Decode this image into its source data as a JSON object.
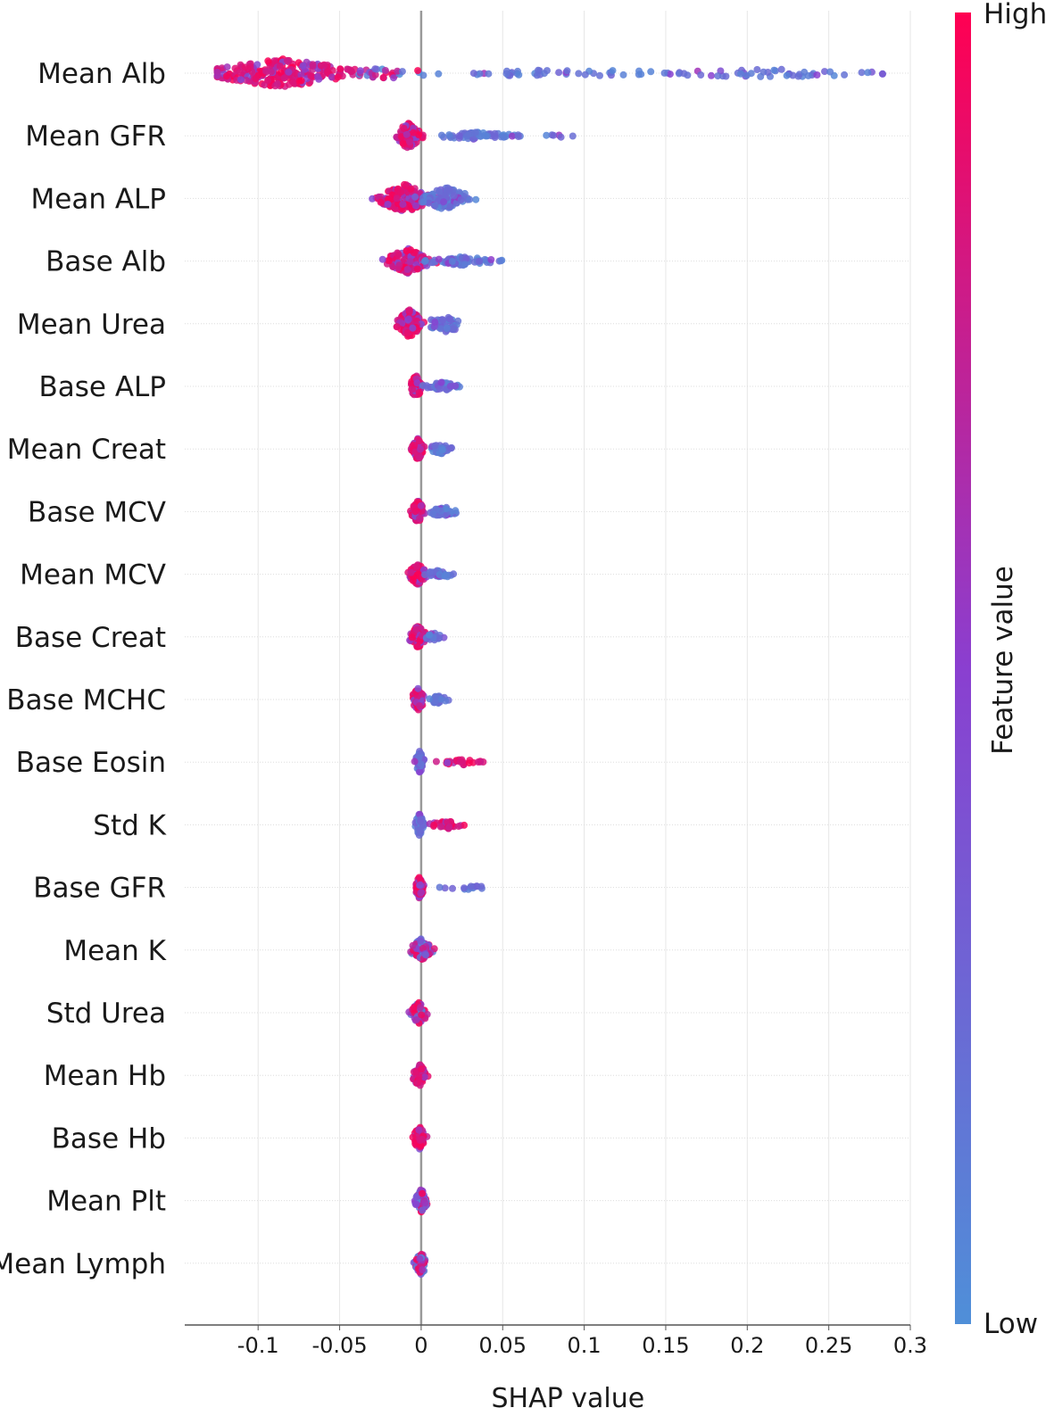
{
  "chart_data": {
    "type": "beeswarm",
    "title": "",
    "xlabel": "SHAP value",
    "xlim": [
      -0.145,
      0.3
    ],
    "xticks": [
      -0.1,
      -0.05,
      0,
      0.05,
      0.1,
      0.15,
      0.2,
      0.25,
      0.3
    ],
    "xtick_labels": [
      "-0.1",
      "-0.05",
      "0",
      "0.05",
      "0.1",
      "0.15",
      "0.2",
      "0.25",
      "0.3"
    ],
    "colorbar": {
      "label": "Feature value",
      "high_label": "High",
      "low_label": "Low",
      "high_color": "#ff0052",
      "mid_color": "#8a3fd0",
      "low_color": "#4f8fd8"
    },
    "features": [
      {
        "name": "Mean Alb",
        "min": -0.125,
        "max": 0.283,
        "high_side": "negative",
        "clusters": [
          {
            "x": -0.085,
            "spread": 0.035,
            "n": 230,
            "h": "high",
            "w": 1.0
          },
          {
            "x": -0.02,
            "spread": 0.02,
            "n": 30,
            "h": "mixed",
            "w": 0.4
          },
          {
            "x": 0.09,
            "spread": 0.06,
            "n": 45,
            "h": "low",
            "w": 0.25
          },
          {
            "x": 0.21,
            "spread": 0.06,
            "n": 45,
            "h": "low",
            "w": 0.3
          }
        ]
      },
      {
        "name": "Mean GFR",
        "min": -0.016,
        "max": 0.093,
        "high_side": "negative",
        "clusters": [
          {
            "x": -0.008,
            "spread": 0.006,
            "n": 90,
            "h": "high",
            "w": 0.9
          },
          {
            "x": 0.035,
            "spread": 0.02,
            "n": 60,
            "h": "low",
            "w": 0.25
          },
          {
            "x": 0.085,
            "spread": 0.008,
            "n": 6,
            "h": "low",
            "w": 0.1
          }
        ]
      },
      {
        "name": "Mean ALP",
        "min": -0.03,
        "max": 0.042,
        "high_side": "negative",
        "clusters": [
          {
            "x": -0.01,
            "spread": 0.013,
            "n": 160,
            "h": "high",
            "w": 1.0
          },
          {
            "x": 0.015,
            "spread": 0.012,
            "n": 90,
            "h": "low",
            "w": 0.8
          }
        ]
      },
      {
        "name": "Base Alb",
        "min": -0.03,
        "max": 0.054,
        "high_side": "negative",
        "clusters": [
          {
            "x": -0.008,
            "spread": 0.01,
            "n": 110,
            "h": "high",
            "w": 0.9
          },
          {
            "x": 0.025,
            "spread": 0.018,
            "n": 70,
            "h": "low",
            "w": 0.3
          }
        ]
      },
      {
        "name": "Mean Urea",
        "min": -0.017,
        "max": 0.036,
        "high_side": "negative",
        "clusters": [
          {
            "x": -0.007,
            "spread": 0.006,
            "n": 110,
            "h": "high",
            "w": 1.0
          },
          {
            "x": 0.015,
            "spread": 0.01,
            "n": 50,
            "h": "low",
            "w": 0.6
          }
        ]
      },
      {
        "name": "Base ALP",
        "min": -0.008,
        "max": 0.029,
        "high_side": "negative",
        "clusters": [
          {
            "x": -0.003,
            "spread": 0.003,
            "n": 70,
            "h": "high",
            "w": 0.8
          },
          {
            "x": 0.013,
            "spread": 0.008,
            "n": 40,
            "h": "low",
            "w": 0.3
          }
        ]
      },
      {
        "name": "Mean Creat",
        "min": -0.007,
        "max": 0.024,
        "high_side": "negative",
        "clusters": [
          {
            "x": -0.002,
            "spread": 0.003,
            "n": 70,
            "h": "high",
            "w": 0.8
          },
          {
            "x": 0.012,
            "spread": 0.006,
            "n": 35,
            "h": "low",
            "w": 0.35
          }
        ]
      },
      {
        "name": "Base MCV",
        "min": -0.008,
        "max": 0.029,
        "high_side": "negative",
        "clusters": [
          {
            "x": -0.002,
            "spread": 0.003,
            "n": 70,
            "h": "high",
            "w": 0.8
          },
          {
            "x": 0.013,
            "spread": 0.008,
            "n": 40,
            "h": "low",
            "w": 0.35
          }
        ]
      },
      {
        "name": "Mean MCV",
        "min": -0.012,
        "max": 0.022,
        "high_side": "negative",
        "clusters": [
          {
            "x": -0.002,
            "spread": 0.004,
            "n": 70,
            "h": "high",
            "w": 0.8
          },
          {
            "x": 0.011,
            "spread": 0.006,
            "n": 35,
            "h": "low",
            "w": 0.35
          }
        ]
      },
      {
        "name": "Base Creat",
        "min": -0.008,
        "max": 0.016,
        "high_side": "negative",
        "clusters": [
          {
            "x": -0.002,
            "spread": 0.004,
            "n": 70,
            "h": "high",
            "w": 0.8
          },
          {
            "x": 0.008,
            "spread": 0.005,
            "n": 20,
            "h": "low",
            "w": 0.3
          }
        ]
      },
      {
        "name": "Base MCHC",
        "min": -0.005,
        "max": 0.017,
        "high_side": "negative",
        "clusters": [
          {
            "x": -0.002,
            "spread": 0.003,
            "n": 60,
            "h": "high",
            "w": 0.8
          },
          {
            "x": 0.01,
            "spread": 0.005,
            "n": 25,
            "h": "low",
            "w": 0.3
          }
        ]
      },
      {
        "name": "Base Eosin",
        "min": -0.004,
        "max": 0.044,
        "high_side": "positive",
        "clusters": [
          {
            "x": -0.001,
            "spread": 0.002,
            "n": 60,
            "h": "low",
            "w": 0.8
          },
          {
            "x": 0.025,
            "spread": 0.012,
            "n": 25,
            "h": "high",
            "w": 0.2
          }
        ]
      },
      {
        "name": "Std K",
        "min": -0.006,
        "max": 0.027,
        "high_side": "positive",
        "clusters": [
          {
            "x": -0.001,
            "spread": 0.002,
            "n": 60,
            "h": "low",
            "w": 0.8
          },
          {
            "x": 0.015,
            "spread": 0.007,
            "n": 30,
            "h": "high",
            "w": 0.3
          }
        ]
      },
      {
        "name": "Base GFR",
        "min": -0.003,
        "max": 0.048,
        "high_side": "negative",
        "clusters": [
          {
            "x": -0.001,
            "spread": 0.002,
            "n": 60,
            "h": "high",
            "w": 0.8
          },
          {
            "x": 0.03,
            "spread": 0.014,
            "n": 14,
            "h": "low",
            "w": 0.15
          }
        ]
      },
      {
        "name": "Mean K",
        "min": -0.014,
        "max": 0.014,
        "high_side": "mixed",
        "clusters": [
          {
            "x": 0.0,
            "spread": 0.005,
            "n": 70,
            "h": "mixed",
            "w": 0.8
          }
        ]
      },
      {
        "name": "Std Urea",
        "min": -0.012,
        "max": 0.007,
        "high_side": "negative",
        "clusters": [
          {
            "x": -0.001,
            "spread": 0.004,
            "n": 60,
            "h": "mixed",
            "w": 0.8
          }
        ]
      },
      {
        "name": "Mean Hb",
        "min": -0.014,
        "max": 0.007,
        "high_side": "negative",
        "clusters": [
          {
            "x": -0.001,
            "spread": 0.004,
            "n": 60,
            "h": "high",
            "w": 0.8
          }
        ]
      },
      {
        "name": "Base Hb",
        "min": -0.007,
        "max": 0.005,
        "high_side": "negative",
        "clusters": [
          {
            "x": -0.001,
            "spread": 0.003,
            "n": 60,
            "h": "high",
            "w": 0.8
          }
        ]
      },
      {
        "name": "Mean Plt",
        "min": -0.011,
        "max": 0.007,
        "high_side": "positive",
        "clusters": [
          {
            "x": 0.0,
            "spread": 0.003,
            "n": 60,
            "h": "mixed",
            "w": 0.8
          }
        ]
      },
      {
        "name": "Mean Lymph",
        "min": -0.01,
        "max": 0.004,
        "high_side": "negative",
        "clusters": [
          {
            "x": 0.0,
            "spread": 0.003,
            "n": 60,
            "h": "mixed",
            "w": 0.8
          }
        ]
      }
    ]
  }
}
